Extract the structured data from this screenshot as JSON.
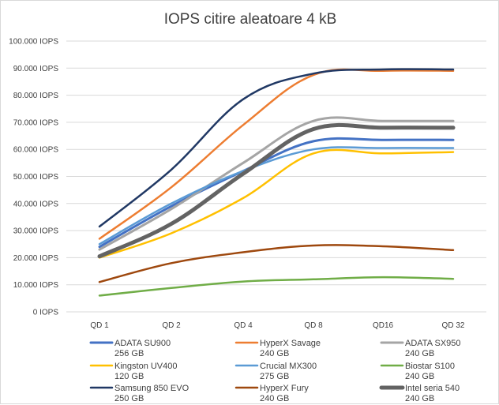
{
  "chart_data": {
    "type": "line",
    "title": "IOPS citire aleatoare 4 kB",
    "categories": [
      "QD 1",
      "QD 2",
      "QD 4",
      "QD 8",
      "QD16",
      "QD 32"
    ],
    "y_tick_labels": [
      "0 IOPS",
      "10.000 IOPS",
      "20.000 IOPS",
      "30.000 IOPS",
      "40.000 IOPS",
      "50.000 IOPS",
      "60.000 IOPS",
      "70.000 IOPS",
      "80.000 IOPS",
      "90.000 IOPS",
      "100.000 IOPS"
    ],
    "ylim": [
      0,
      100000
    ],
    "grid": true,
    "legend_position": "bottom",
    "series": [
      {
        "name": "ADATA SU900",
        "sub": "256 GB",
        "color": "#4472C4",
        "width": 3,
        "values": [
          24000,
          39000,
          52000,
          63000,
          63500,
          63500
        ]
      },
      {
        "name": "HyperX Savage",
        "sub": "240 GB",
        "color": "#ED7D31",
        "width": 2.5,
        "values": [
          27000,
          46000,
          69000,
          87500,
          89000,
          89000
        ]
      },
      {
        "name": "ADATA SX950",
        "sub": "240 GB",
        "color": "#A5A5A5",
        "width": 3,
        "values": [
          23000,
          38000,
          55000,
          70500,
          70500,
          70500
        ]
      },
      {
        "name": "Kingston UV400",
        "sub": "120 GB",
        "color": "#FFC000",
        "width": 2.5,
        "values": [
          20000,
          29000,
          42000,
          58500,
          58500,
          59000
        ]
      },
      {
        "name": "Crucial MX300",
        "sub": "275 GB",
        "color": "#5B9BD5",
        "width": 2.5,
        "values": [
          25000,
          40000,
          52000,
          60000,
          60500,
          60500
        ]
      },
      {
        "name": "Biostar S100",
        "sub": "240 GB",
        "color": "#70AD47",
        "width": 2.5,
        "values": [
          6000,
          8800,
          11200,
          12000,
          12800,
          12200
        ]
      },
      {
        "name": "Samsung 850 EVO",
        "sub": "250 GB",
        "color": "#203864",
        "width": 2.5,
        "values": [
          31500,
          52500,
          78500,
          88000,
          89500,
          89500
        ]
      },
      {
        "name": "HyperX Fury",
        "sub": "240 GB",
        "color": "#9E480E",
        "width": 2.5,
        "values": [
          11000,
          18000,
          22000,
          24500,
          24200,
          22800
        ]
      },
      {
        "name": "Intel seria 540",
        "sub": "240 GB",
        "color": "#636363",
        "width": 5,
        "values": [
          20500,
          32500,
          51000,
          67500,
          68000,
          68000
        ]
      }
    ]
  }
}
